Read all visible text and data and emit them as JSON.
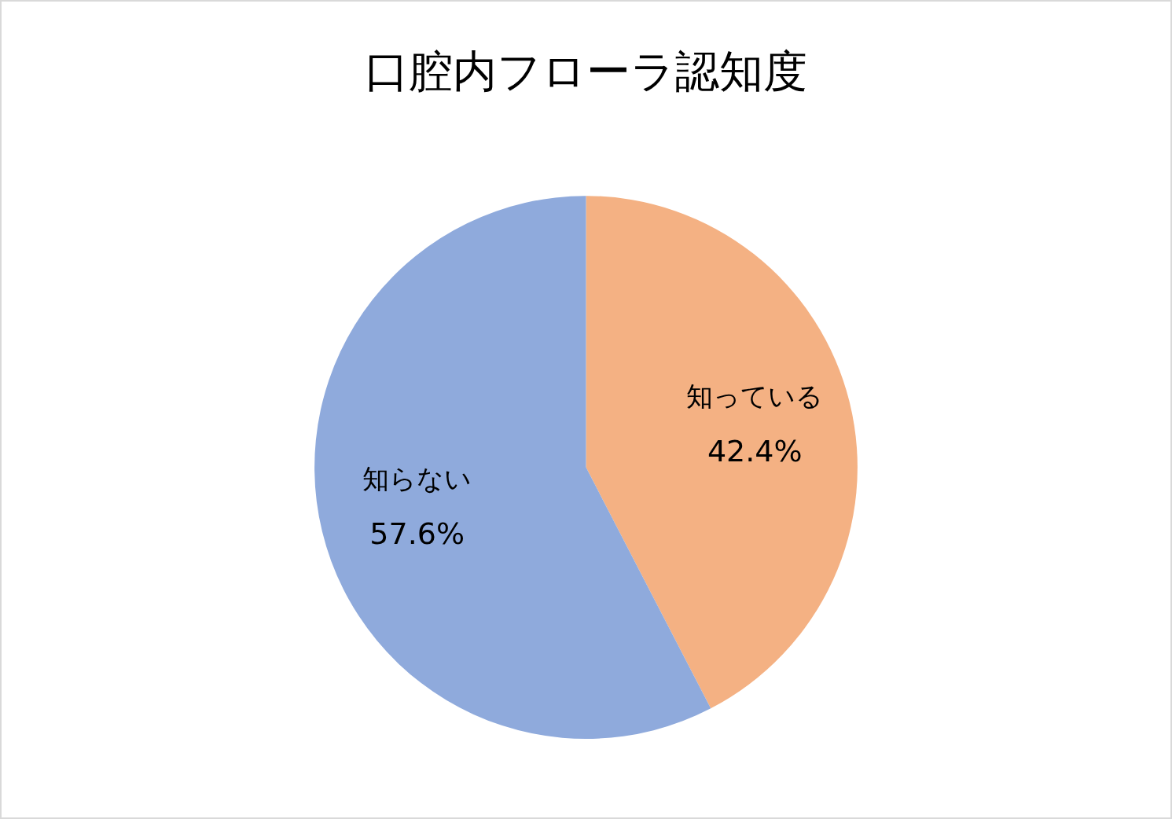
{
  "chart_data": {
    "type": "pie",
    "title": "口腔内フローラ認知度",
    "categories": [
      "知っている",
      "知らない"
    ],
    "values": [
      42.4,
      57.6
    ],
    "value_labels": [
      "42.4%",
      "57.6%"
    ],
    "colors": [
      "#f4b183",
      "#8faadc"
    ],
    "legend": false
  }
}
